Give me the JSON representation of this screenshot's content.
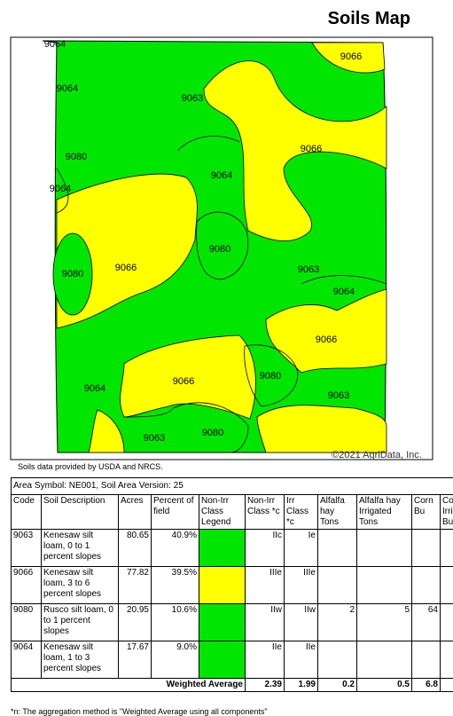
{
  "header": {
    "title": "Soils Map"
  },
  "map": {
    "labels": [
      "9064",
      "9066",
      "9064",
      "9063",
      "9066",
      "9080",
      "9064",
      "9064",
      "9080",
      "9066",
      "9080",
      "9063",
      "9064",
      "9066",
      "9080",
      "9066",
      "9064",
      "9063",
      "9080",
      "9063"
    ],
    "copyright": "©2021 AgriData, Inc."
  },
  "source_note": "Soils data provided by USDA and NRCS.",
  "table": {
    "caption": "Area Symbol: NE001, Soil Area Version: 25",
    "headers": [
      "Code",
      "Soil Description",
      "Acres",
      "Percent of field",
      "Non-Irr Class Legend",
      "Non-Irr Class *c",
      "Irr Class *c",
      "Alfalfa hay Tons",
      "Alfalfa hay Irrigated Tons",
      "Corn Bu",
      "Corn Irrigated Bu"
    ],
    "rows": [
      {
        "code": "9063",
        "description": "Kenesaw silt loam, 0 to 1 percent slopes",
        "acres": "80.65",
        "percent": "40.9%",
        "legend_color": "#00e600",
        "non_irr_class": "IIc",
        "irr_class": "Ie"
      },
      {
        "code": "9066",
        "description": "Kenesaw silt loam, 3 to 6 percent slopes",
        "acres": "77.82",
        "percent": "39.5%",
        "legend_color": "#ffff00",
        "non_irr_class": "IIIe",
        "irr_class": "IIIe"
      },
      {
        "code": "9080",
        "description": "Rusco silt loam, 0 to 1 percent slopes",
        "acres": "20.95",
        "percent": "10.6%",
        "legend_color": "#00e600",
        "non_irr_class": "IIw",
        "irr_class": "IIw",
        "alfalfa_tons": "2",
        "alfalfa_irr_tons": "5",
        "corn_bu": "64"
      },
      {
        "code": "9064",
        "description": "Kenesaw silt loam, 1 to 3 percent slopes",
        "acres": "17.67",
        "percent": "9.0%",
        "legend_color": "#00e600",
        "non_irr_class": "IIe",
        "irr_class": "IIe"
      }
    ],
    "footer": {
      "label": "Weighted Average",
      "non_irr_class": "2.39",
      "irr_class": "1.99",
      "alfalfa_tons": "0.2",
      "alfalfa_irr_tons": "0.5",
      "corn_bu": "6.8"
    }
  },
  "footnote": "*n: The aggregation method is \"Weighted Average using all components\""
}
